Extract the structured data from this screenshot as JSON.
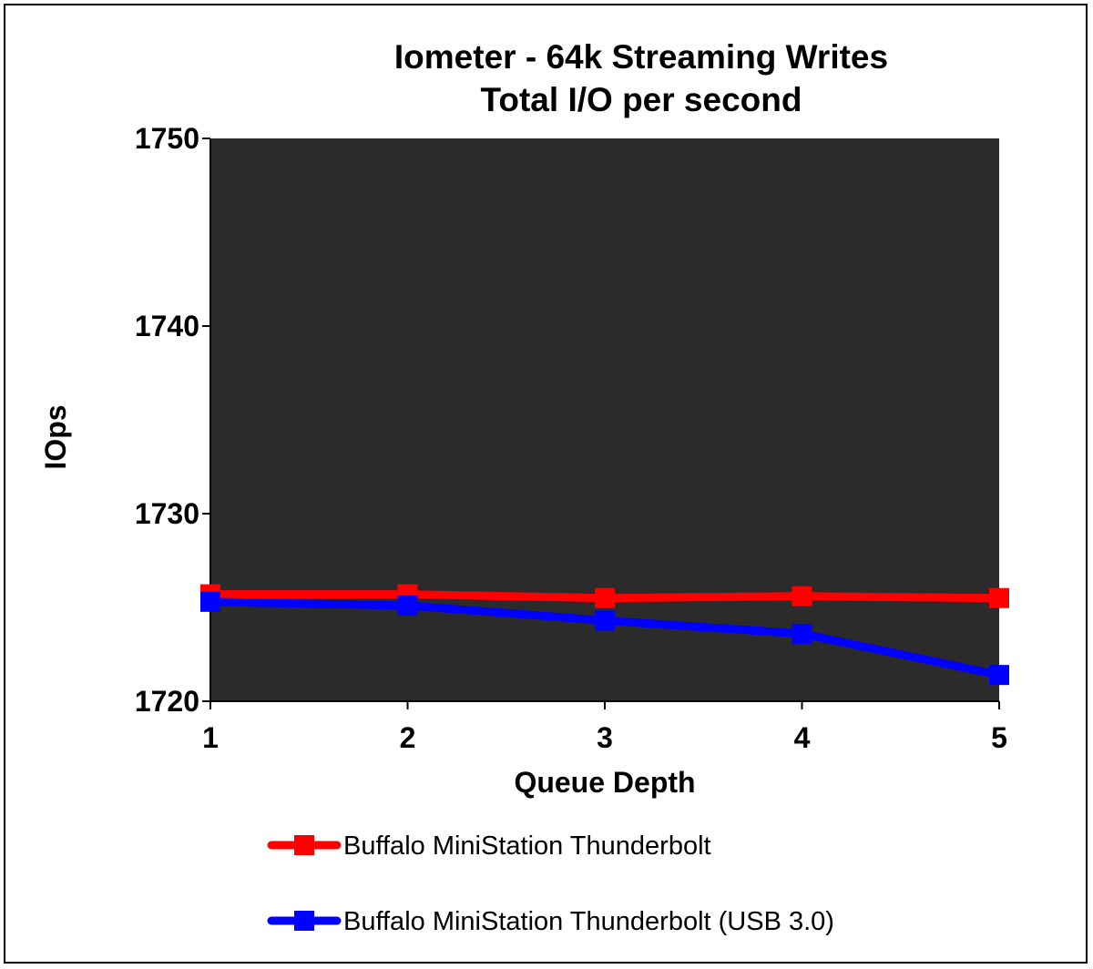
{
  "chart_data": {
    "type": "line",
    "title": "Iometer - 64k  Streaming Writes",
    "subtitle": "Total I/O per second",
    "xlabel": "Queue Depth",
    "ylabel": "IOps",
    "x": [
      1,
      2,
      3,
      4,
      5
    ],
    "x_tick_labels": [
      "1",
      "2",
      "3",
      "4",
      "5"
    ],
    "ylim": [
      1720,
      1750
    ],
    "y_ticks": [
      1720,
      1730,
      1740,
      1750
    ],
    "y_tick_labels": [
      "1720",
      "1730",
      "1740",
      "1750"
    ],
    "grid": false,
    "plot_background": "#2b2b2b",
    "legend_position": "bottom",
    "series": [
      {
        "name": "Buffalo MiniStation Thunderbolt",
        "color": "#ff0000",
        "values": [
          1725.7,
          1725.7,
          1725.5,
          1725.6,
          1725.5
        ]
      },
      {
        "name": "Buffalo MiniStation Thunderbolt (USB 3.0)",
        "color": "#0000ff",
        "values": [
          1725.3,
          1725.1,
          1724.3,
          1723.6,
          1721.4
        ]
      }
    ]
  }
}
